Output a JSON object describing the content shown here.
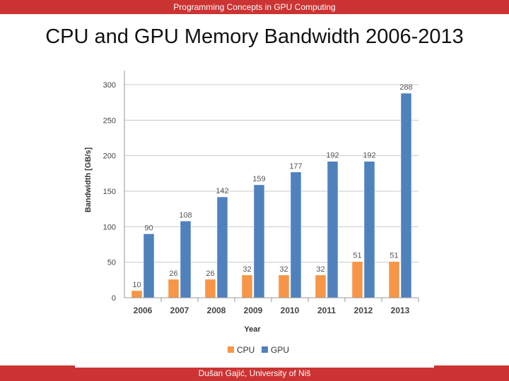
{
  "header": {
    "text": "Programming Concepts in GPU Computing"
  },
  "slide": {
    "title": "CPU and GPU Memory Bandwidth 2006-2013"
  },
  "footer": {
    "text": "Dušan Gajić, University of Niš"
  },
  "chart_data": {
    "type": "bar",
    "title": "",
    "xlabel": "Year",
    "ylabel": "Bandwidth [GB/s]",
    "categories": [
      "2006",
      "2007",
      "2008",
      "2009",
      "2010",
      "2011",
      "2012",
      "2013"
    ],
    "series": [
      {
        "name": "CPU",
        "color": "#f79646",
        "values": [
          10,
          26,
          26,
          32,
          32,
          32,
          51,
          51
        ]
      },
      {
        "name": "GPU",
        "color": "#4f81bd",
        "values": [
          90,
          108,
          142,
          159,
          177,
          192,
          192,
          288
        ]
      }
    ],
    "ylim": [
      0,
      300
    ],
    "yticks": [
      0,
      50,
      100,
      150,
      200,
      250,
      300
    ],
    "grid": true,
    "legend": "bottom",
    "data_labels": true
  }
}
